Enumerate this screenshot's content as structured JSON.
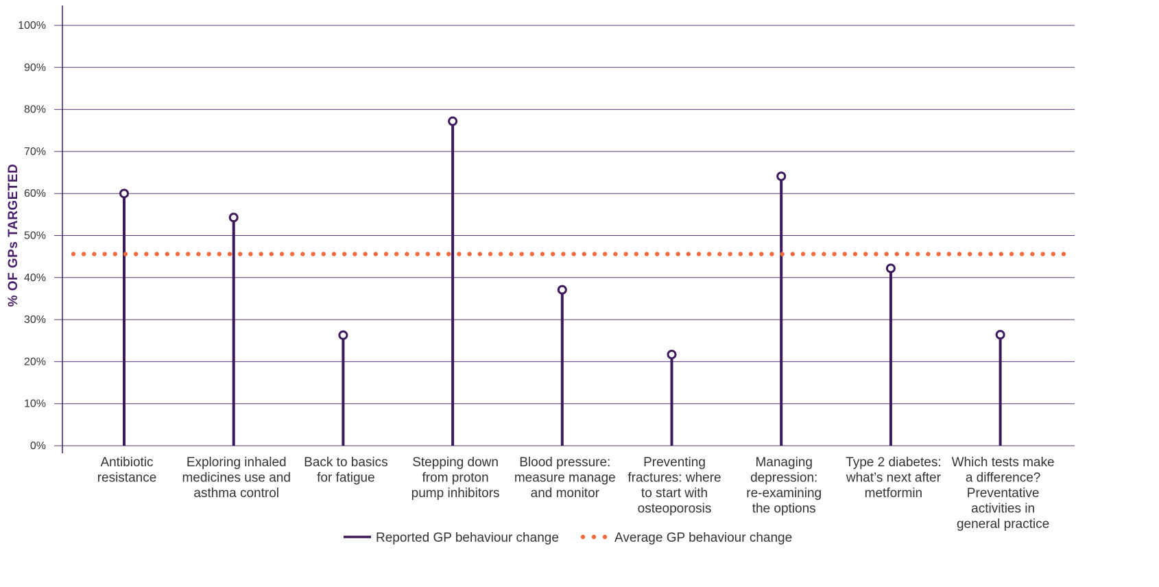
{
  "chart_data": {
    "type": "lollipop",
    "ylabel": "% OF GPs TARGETED",
    "ylim": [
      0,
      100
    ],
    "yticks": [
      "0%",
      "10%",
      "20%",
      "30%",
      "40%",
      "50%",
      "60%",
      "70%",
      "80%",
      "90%",
      "100%"
    ],
    "ytick_values": [
      0,
      10,
      20,
      30,
      40,
      50,
      60,
      70,
      80,
      90,
      100
    ],
    "grid": true,
    "categories": [
      [
        "Antibiotic",
        "resistance"
      ],
      [
        "Exploring inhaled",
        "medicines use and",
        "asthma control"
      ],
      [
        "Back to basics",
        "for fatigue"
      ],
      [
        "Stepping down",
        "from proton",
        "pump inhibitors"
      ],
      [
        "Blood pressure:",
        "measure manage",
        "and monitor"
      ],
      [
        "Preventing",
        "fractures: where",
        "to start with",
        "osteoporosis"
      ],
      [
        "Managing",
        "depression:",
        "re-examining",
        "the options"
      ],
      [
        "Type 2 diabetes:",
        "what’s next after",
        "metformin"
      ],
      [
        "Which tests make",
        "a difference?",
        "Preventative",
        "activities in",
        "general practice"
      ]
    ],
    "series": [
      {
        "name": "Reported GP behaviour change",
        "values": [
          60,
          54.3,
          26.3,
          77.2,
          37.1,
          21.7,
          64.1,
          42.2,
          26.4
        ],
        "color": "#3d1a5b"
      }
    ],
    "average": {
      "name": "Average GP behaviour change",
      "value": 45.6,
      "color": "#f26a3d"
    },
    "legend_position": "bottom-center",
    "colors": {
      "grid": "#5c3a7e",
      "axis": "#3d1a5b",
      "ytitle": "#4a1f6b"
    }
  }
}
